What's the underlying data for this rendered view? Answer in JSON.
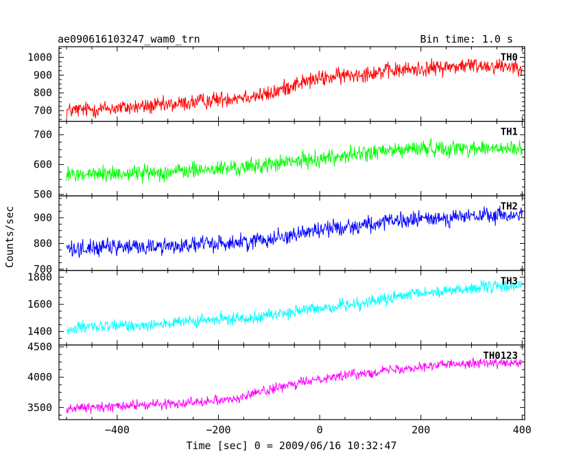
{
  "header": {
    "left_title": "ae090616103247_wam0_trn",
    "right_title": "Bin time: 1.0 s"
  },
  "axes": {
    "xlabel": "Time [sec] 0 = 2009/06/16 10:32:47",
    "ylabel": "Counts/sec"
  },
  "chart_data": {
    "type": "line",
    "xlim": [
      -515,
      405
    ],
    "x_ticks": [
      -400,
      -200,
      0,
      200,
      400
    ],
    "x_tick_labels": [
      "−400",
      "−200",
      "0",
      "200",
      "400"
    ],
    "x_range_data": [
      -500,
      400
    ],
    "bin_time_s": 1.0,
    "grid": false,
    "legend": "none; each panel labelled at top-right",
    "panels": [
      {
        "name": "TH0",
        "color": "#ff0000",
        "ylim": [
          640,
          1060
        ],
        "y_ticks": [
          700,
          800,
          900,
          1000
        ],
        "y_tick_labels": [
          "700",
          "800",
          "900",
          "1000"
        ],
        "trend": [
          [
            -500,
            700
          ],
          [
            -300,
            730
          ],
          [
            -150,
            780
          ],
          [
            -100,
            790
          ],
          [
            -50,
            850
          ],
          [
            0,
            880
          ],
          [
            100,
            915
          ],
          [
            200,
            935
          ],
          [
            300,
            955
          ],
          [
            400,
            950
          ]
        ],
        "noise_amplitude": 40
      },
      {
        "name": "TH1",
        "color": "#00ff00",
        "ylim": [
          495,
          745
        ],
        "y_ticks": [
          500,
          600,
          700
        ],
        "y_tick_labels": [
          "500",
          "600",
          "700"
        ],
        "trend": [
          [
            -500,
            565
          ],
          [
            -300,
            575
          ],
          [
            -150,
            590
          ],
          [
            -50,
            610
          ],
          [
            0,
            620
          ],
          [
            100,
            640
          ],
          [
            200,
            655
          ],
          [
            300,
            655
          ],
          [
            400,
            650
          ]
        ],
        "noise_amplitude": 24
      },
      {
        "name": "TH2",
        "color": "#0000ff",
        "ylim": [
          695,
          985
        ],
        "y_ticks": [
          700,
          800,
          900
        ],
        "y_tick_labels": [
          "700",
          "800",
          "900"
        ],
        "trend": [
          [
            -500,
            780
          ],
          [
            -300,
            790
          ],
          [
            -150,
            805
          ],
          [
            -50,
            835
          ],
          [
            0,
            855
          ],
          [
            100,
            875
          ],
          [
            200,
            895
          ],
          [
            300,
            905
          ],
          [
            400,
            910
          ]
        ],
        "noise_amplitude": 28
      },
      {
        "name": "TH3",
        "color": "#00ffff",
        "ylim": [
          1300,
          1850
        ],
        "y_ticks": [
          1400,
          1600,
          1800
        ],
        "y_tick_labels": [
          "1400",
          "1600",
          "1800"
        ],
        "trend": [
          [
            -500,
            1420
          ],
          [
            -300,
            1460
          ],
          [
            -150,
            1500
          ],
          [
            -50,
            1545
          ],
          [
            0,
            1570
          ],
          [
            100,
            1620
          ],
          [
            200,
            1680
          ],
          [
            300,
            1720
          ],
          [
            400,
            1740
          ]
        ],
        "noise_amplitude": 40
      },
      {
        "name": "TH0123",
        "color": "#ff00ff",
        "ylim": [
          3300,
          4530
        ],
        "y_ticks": [
          3500,
          4000,
          4500
        ],
        "y_tick_labels": [
          "3500",
          "4000",
          "4500"
        ],
        "trend": [
          [
            -500,
            3480
          ],
          [
            -300,
            3560
          ],
          [
            -150,
            3660
          ],
          [
            -130,
            3740
          ],
          [
            -50,
            3880
          ],
          [
            0,
            3980
          ],
          [
            100,
            4080
          ],
          [
            200,
            4180
          ],
          [
            300,
            4240
          ],
          [
            400,
            4220
          ]
        ],
        "noise_amplitude": 70
      }
    ]
  }
}
